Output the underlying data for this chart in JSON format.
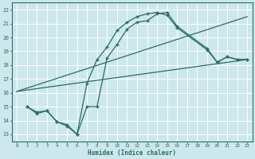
{
  "bg_color": "#cce8ec",
  "line_color": "#2e6b5e",
  "grid_color": "#ffffff",
  "xlabel": "Humidex (Indice chaleur)",
  "xlim": [
    -0.5,
    23.5
  ],
  "ylim": [
    12.5,
    22.5
  ],
  "yticks": [
    13,
    14,
    15,
    16,
    17,
    18,
    19,
    20,
    21,
    22
  ],
  "xticks": [
    0,
    1,
    2,
    3,
    4,
    5,
    6,
    7,
    8,
    9,
    10,
    11,
    12,
    13,
    14,
    15,
    16,
    17,
    18,
    19,
    20,
    21,
    22,
    23
  ],
  "line1": {
    "x": [
      0,
      23
    ],
    "y": [
      16.1,
      18.4
    ]
  },
  "line2": {
    "x": [
      0,
      23
    ],
    "y": [
      16.1,
      21.5
    ]
  },
  "line3": {
    "x": [
      1,
      2,
      3,
      4,
      5,
      6,
      7,
      8,
      9,
      10,
      11,
      12,
      13,
      14,
      15,
      16,
      19,
      20,
      21,
      22,
      23
    ],
    "y": [
      15.0,
      14.6,
      14.7,
      13.9,
      13.7,
      13.0,
      16.7,
      18.4,
      19.3,
      20.5,
      21.1,
      21.5,
      21.7,
      21.8,
      21.6,
      20.7,
      19.1,
      18.2,
      18.6,
      18.4,
      18.4
    ]
  },
  "line4": {
    "x": [
      1,
      2,
      3,
      4,
      5,
      6,
      7,
      8,
      9,
      10,
      11,
      12,
      13,
      14,
      15,
      16,
      19,
      20,
      21,
      22,
      23
    ],
    "y": [
      15.0,
      14.5,
      14.7,
      13.9,
      13.6,
      13.0,
      15.0,
      15.0,
      18.5,
      19.5,
      20.6,
      21.1,
      21.2,
      21.7,
      21.8,
      20.8,
      19.2,
      18.2,
      18.6,
      18.4,
      18.4
    ]
  }
}
